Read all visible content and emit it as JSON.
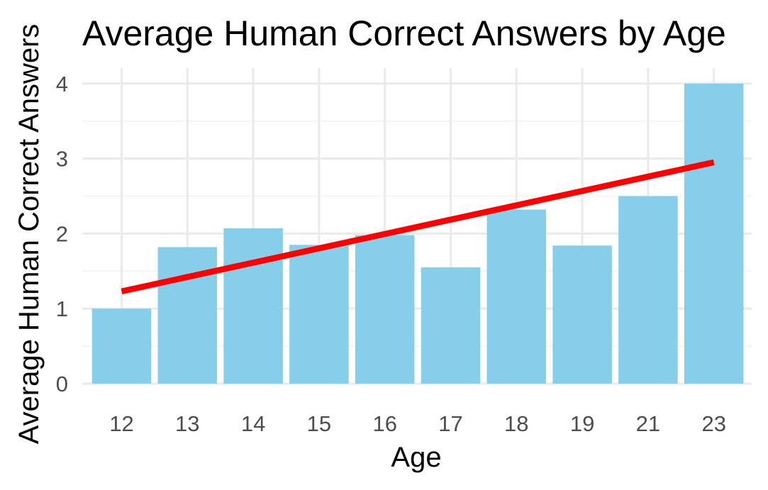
{
  "chart_data": {
    "type": "bar",
    "title": "Average Human Correct Answers by Age",
    "xlabel": "Age",
    "ylabel": "Average Human Correct Answers",
    "categories": [
      "12",
      "13",
      "14",
      "15",
      "16",
      "17",
      "18",
      "19",
      "21",
      "23"
    ],
    "values": [
      1.0,
      1.82,
      2.07,
      1.85,
      1.98,
      1.55,
      2.32,
      1.84,
      2.5,
      4.0
    ],
    "ylim": [
      0,
      4.2
    ],
    "yticks": [
      0,
      1,
      2,
      3,
      4
    ],
    "grid": true,
    "bar_color": "#87CEEB",
    "trend_line": {
      "type": "linear",
      "color": "#ff0000",
      "start": {
        "category": "12",
        "y": 1.23
      },
      "end": {
        "category": "23",
        "y": 2.95
      }
    }
  }
}
